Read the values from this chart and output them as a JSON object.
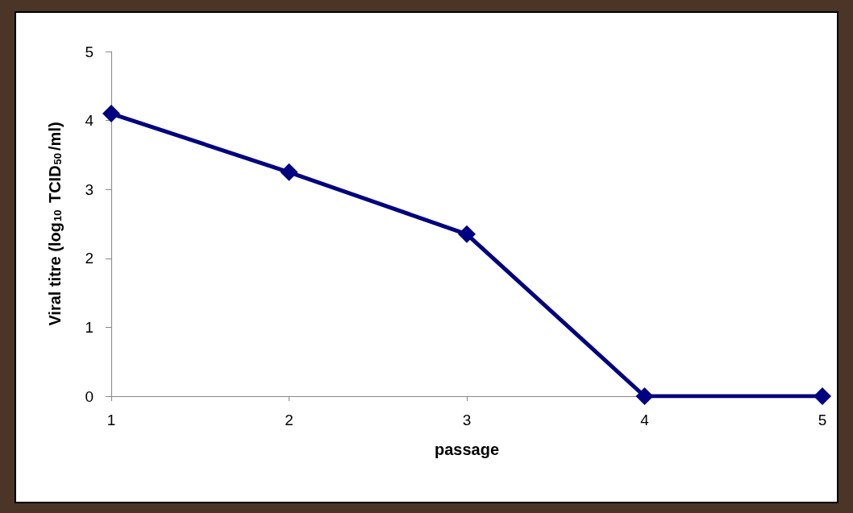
{
  "chart_data": {
    "type": "line",
    "xlabel": "passage",
    "ylabel": "Viral titre (log$_{10}$ TCID$_{50}$/ml)",
    "x": [
      1,
      2,
      3,
      4,
      5
    ],
    "series": [
      {
        "color": "#000080",
        "values": [
          4.1,
          3.25,
          2.35,
          0,
          0
        ]
      }
    ],
    "xlim": [
      1,
      5
    ],
    "xticks": [
      1,
      2,
      3,
      4,
      5
    ],
    "ylim": [
      0,
      5
    ],
    "yticks": [
      0,
      1,
      2,
      3,
      4,
      5
    ],
    "marker": "diamond",
    "line_style": "solid"
  }
}
